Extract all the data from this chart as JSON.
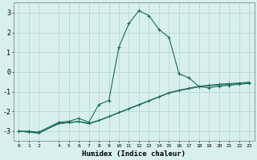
{
  "xlabel": "Humidex (Indice chaleur)",
  "background_color": "#d8f0ec",
  "grid_color": "#b8d8d0",
  "line_color": "#1a6b5a",
  "xlim": [
    -0.5,
    23.5
  ],
  "ylim": [
    -3.5,
    3.5
  ],
  "xtick_labels": [
    "0",
    "1",
    "2",
    "4",
    "5",
    "6",
    "7",
    "8",
    "9",
    "10",
    "11",
    "12",
    "13",
    "14",
    "15",
    "16",
    "17",
    "18",
    "19",
    "20",
    "21",
    "22",
    "23"
  ],
  "xtick_pos": [
    0,
    1,
    2,
    4,
    5,
    6,
    7,
    8,
    9,
    10,
    11,
    12,
    13,
    14,
    15,
    16,
    17,
    18,
    19,
    20,
    21,
    22,
    23
  ],
  "yticks": [
    -3,
    -2,
    -1,
    0,
    1,
    2,
    3
  ],
  "curve1_x": [
    0,
    1,
    2,
    4,
    5,
    6,
    7,
    8,
    9,
    10,
    11,
    12,
    13,
    14,
    15,
    16,
    17,
    18,
    19,
    20,
    21,
    22,
    23
  ],
  "curve1_y": [
    -3.0,
    -3.0,
    -3.05,
    -2.55,
    -2.5,
    -2.35,
    -2.55,
    -1.65,
    -1.45,
    1.25,
    2.45,
    3.1,
    2.85,
    2.15,
    1.75,
    -0.1,
    -0.3,
    -0.75,
    -0.8,
    -0.72,
    -0.68,
    -0.63,
    -0.58
  ],
  "curve2_x": [
    0,
    1,
    2,
    4,
    5,
    6,
    7,
    8,
    9,
    10,
    11,
    12,
    13,
    14,
    15,
    16,
    17,
    18,
    19,
    20,
    21,
    22,
    23
  ],
  "curve2_y": [
    -3.0,
    -3.05,
    -3.1,
    -2.6,
    -2.55,
    -2.5,
    -2.6,
    -2.45,
    -2.25,
    -2.05,
    -1.85,
    -1.65,
    -1.45,
    -1.25,
    -1.05,
    -0.92,
    -0.82,
    -0.72,
    -0.67,
    -0.62,
    -0.59,
    -0.56,
    -0.52
  ],
  "curve3_x": [
    0,
    1,
    2,
    4,
    5,
    6,
    7,
    8,
    9,
    10,
    11,
    12,
    13,
    14,
    15,
    16,
    17,
    18,
    19,
    20,
    21,
    22,
    23
  ],
  "curve3_y": [
    -3.0,
    -3.05,
    -3.1,
    -2.62,
    -2.57,
    -2.52,
    -2.62,
    -2.47,
    -2.27,
    -2.07,
    -1.87,
    -1.67,
    -1.47,
    -1.27,
    -1.07,
    -0.95,
    -0.85,
    -0.75,
    -0.7,
    -0.65,
    -0.62,
    -0.58,
    -0.54
  ],
  "curve4_x": [
    0,
    1,
    2,
    4,
    5,
    6,
    7,
    8,
    9,
    10,
    11,
    12,
    13,
    14,
    15,
    16,
    17,
    18,
    19,
    20,
    21,
    22,
    23
  ],
  "curve4_y": [
    -3.0,
    -3.05,
    -3.1,
    -2.63,
    -2.58,
    -2.53,
    -2.63,
    -2.48,
    -2.28,
    -2.08,
    -1.88,
    -1.68,
    -1.48,
    -1.28,
    -1.08,
    -0.96,
    -0.86,
    -0.76,
    -0.71,
    -0.66,
    -0.63,
    -0.59,
    -0.55
  ]
}
